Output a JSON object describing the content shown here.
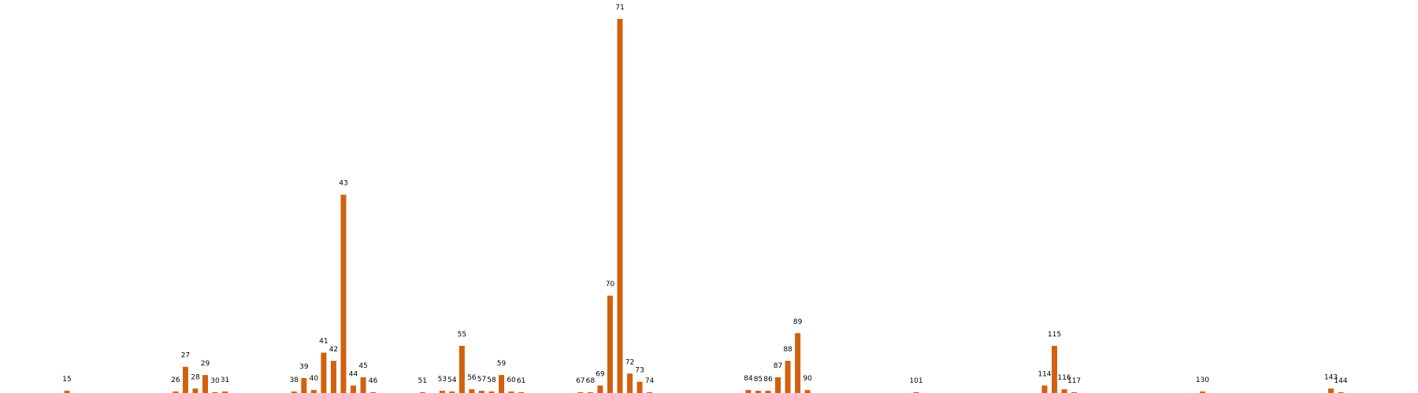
{
  "chart_data": {
    "type": "bar",
    "x": [
      15,
      26,
      27,
      28,
      29,
      30,
      31,
      38,
      39,
      40,
      41,
      42,
      43,
      44,
      45,
      46,
      51,
      53,
      54,
      55,
      56,
      57,
      58,
      59,
      60,
      61,
      67,
      68,
      69,
      70,
      71,
      72,
      73,
      74,
      84,
      85,
      86,
      87,
      88,
      89,
      90,
      101,
      114,
      115,
      116,
      117,
      130,
      143,
      144
    ],
    "values": [
      0.3,
      0.2,
      3.5,
      0.6,
      2.4,
      0.1,
      0.2,
      0.2,
      2.0,
      0.4,
      5.4,
      4.3,
      26.5,
      1.0,
      2.1,
      0.1,
      0.05,
      0.3,
      0.2,
      6.3,
      0.5,
      0.3,
      0.2,
      2.4,
      0.2,
      0.1,
      0.05,
      0.05,
      1.0,
      13.0,
      50.0,
      2.6,
      1.5,
      0.1,
      0.4,
      0.3,
      0.3,
      2.1,
      4.3,
      8.0,
      0.4,
      0.05,
      1.0,
      6.3,
      0.5,
      0.1,
      0.2,
      0.6,
      0.05
    ],
    "xlim": [
      0,
      145
    ],
    "ylim": [
      0,
      50
    ],
    "bar_color": "#d2610f",
    "label_color": "#000000",
    "title": "",
    "xlabel": "",
    "ylabel": "",
    "grid": false,
    "legend": false
  }
}
